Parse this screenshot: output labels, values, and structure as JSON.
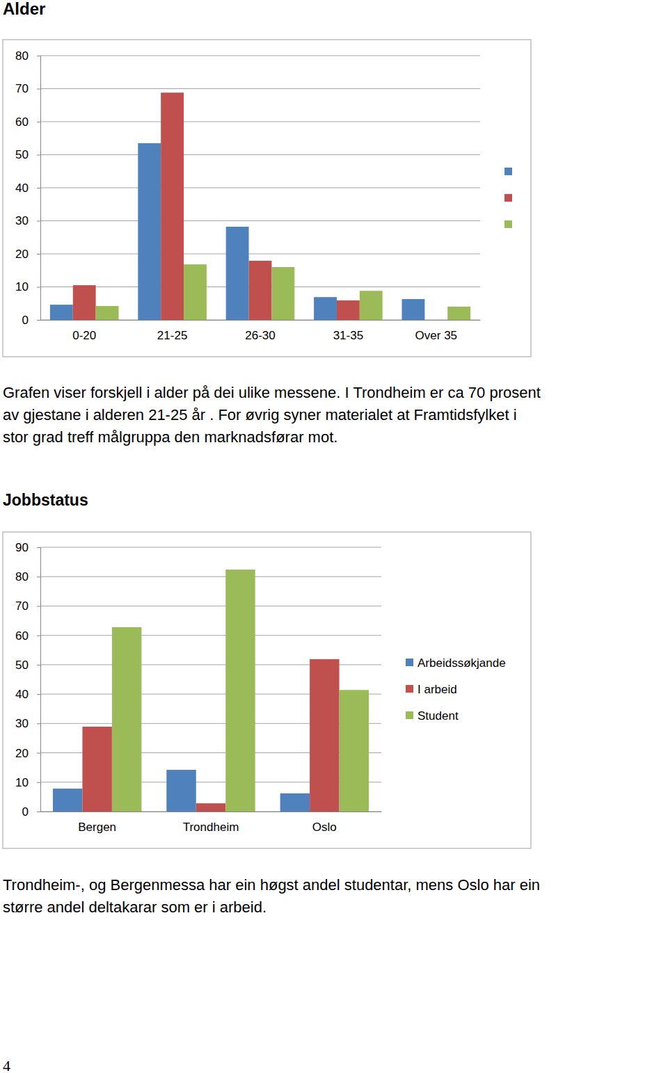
{
  "headings": [
    "Alder",
    "Jobbstatus"
  ],
  "chart_data": [
    {
      "type": "bar",
      "categories": [
        "0-20",
        "21-25",
        "26-30",
        "31-35",
        "Over 35"
      ],
      "series": [
        {
          "color": "#4f81bd",
          "values": [
            4.6,
            53.5,
            28.2,
            6.9,
            6.3
          ]
        },
        {
          "color": "#c0504d",
          "values": [
            10.5,
            68.8,
            17.9,
            5.9,
            null
          ]
        },
        {
          "color": "#9bbb59",
          "values": [
            4.2,
            16.8,
            16.0,
            8.8,
            4.0
          ]
        }
      ],
      "ylim": [
        0,
        80
      ],
      "yticks": [
        0,
        10,
        20,
        30,
        40,
        50,
        60,
        70,
        80
      ],
      "grid": true,
      "legend": "right"
    },
    {
      "type": "bar",
      "categories": [
        "Bergen",
        "Trondheim",
        "Oslo"
      ],
      "series": [
        {
          "name": "Arbeidssøkjande",
          "color": "#4f81bd",
          "values": [
            7.8,
            14.2,
            6.2
          ]
        },
        {
          "name": "I arbeid",
          "color": "#c0504d",
          "values": [
            28.9,
            2.8,
            51.9
          ]
        },
        {
          "name": "Student",
          "color": "#9bbb59",
          "values": [
            62.8,
            82.4,
            41.4
          ]
        }
      ],
      "ylim": [
        0,
        90
      ],
      "yticks": [
        0,
        10,
        20,
        30,
        40,
        50,
        60,
        70,
        80,
        90
      ],
      "grid": true,
      "legend": "right"
    }
  ],
  "paragraphs": [
    [
      "Grafen viser forskjell i alder på dei ulike messene. I Trondheim er ca 70 prosent",
      "av gjestane i alderen 21-25 år . For øvrig syner materialet at Framtidsfylket i",
      "stor grad treff målgruppa den marknadsførar mot."
    ],
    [
      "Trondheim-, og Bergenmessa har ein høgst andel studentar, mens Oslo har ein",
      "større andel deltakarar som er i arbeid."
    ]
  ],
  "page_number": 4
}
